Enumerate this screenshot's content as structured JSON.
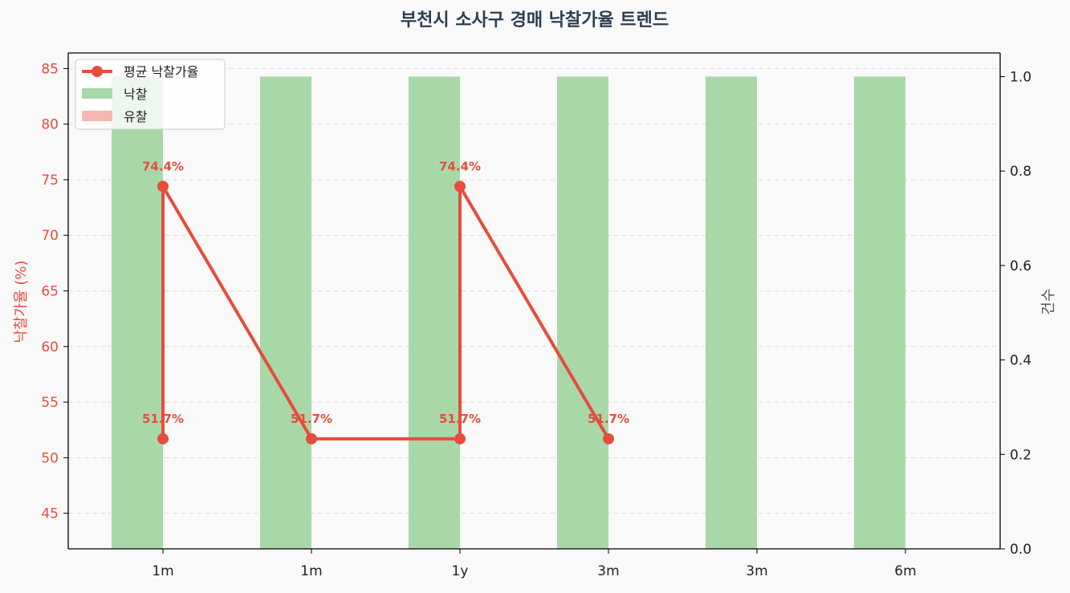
{
  "chart_data": {
    "type": "bar+line",
    "title": "부천시 소사구 경매 낙찰가율 트렌드",
    "categories": [
      "1m",
      "1m",
      "1y",
      "3m",
      "3m",
      "6m"
    ],
    "y_left": {
      "label": "낙찰가율 (%)",
      "lim": [
        41.8,
        86.4
      ],
      "ticks": [
        45,
        50,
        55,
        60,
        65,
        70,
        75,
        80,
        85
      ]
    },
    "y_right": {
      "label": "건수",
      "lim": [
        0,
        1.05
      ],
      "ticks": [
        0.0,
        0.2,
        0.4,
        0.6,
        0.8,
        1.0
      ],
      "tick_labels": [
        "0.0",
        "0.2",
        "0.4",
        "0.6",
        "0.8",
        "1.0"
      ]
    },
    "grid": true,
    "legend_position": "top-left",
    "series": [
      {
        "name": "평균 낙찰가율",
        "kind": "line",
        "axis": "left",
        "color": "#e74c3c",
        "points": [
          {
            "x": 0,
            "y": 51.7
          },
          {
            "x": 0,
            "y": 74.4
          },
          {
            "x": 1,
            "y": 51.7
          },
          {
            "x": 2,
            "y": 51.7
          },
          {
            "x": 2,
            "y": 74.4
          },
          {
            "x": 3,
            "y": 51.7
          }
        ],
        "labels": [
          "51.7%",
          "74.4%",
          "51.7%",
          "51.7%",
          "74.4%",
          "51.7%"
        ]
      },
      {
        "name": "낙찰",
        "kind": "bar",
        "axis": "right",
        "color": "#a8d8a8",
        "values": [
          1,
          1,
          1,
          1,
          1,
          1
        ]
      },
      {
        "name": "유찰",
        "kind": "bar",
        "axis": "right",
        "color": "#f5b7b1",
        "values": [
          0,
          0,
          0,
          0,
          0,
          0
        ]
      }
    ]
  }
}
